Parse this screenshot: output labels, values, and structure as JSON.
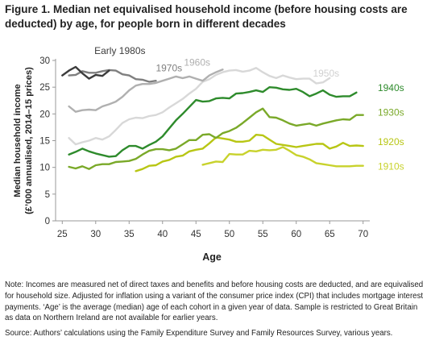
{
  "title": "Figure 1. Median net equivalised household income (before housing costs are deducted) by age, for people born in different decades",
  "notes": {
    "note": "Note: Incomes are measured net of direct taxes and benefits and before housing costs are deducted, and are equivalised for household size. Adjusted for inflation using a variant of the consumer price index (CPI) that includes mortgage interest payments. ‘Age’ is the average (median) age of each cohort in a given year of data. Sample is restricted to Great Britain as data on Northern Ireland are not available for earlier years.",
    "source": "Source: Authors’ calculations using the Family Expenditure Survey and Family Resources Survey, various years."
  },
  "chart_data": {
    "type": "line",
    "xlabel": "Age",
    "ylabel": "Median household income (£’000 annualised, 2014–15 prices)",
    "xlim": [
      24,
      71
    ],
    "ylim": [
      0,
      30
    ],
    "xticks": [
      25,
      30,
      35,
      40,
      45,
      50,
      55,
      60,
      65,
      70
    ],
    "yticks": [
      0,
      5,
      10,
      15,
      20,
      25,
      30
    ],
    "grid": false,
    "legend": "inline labels at line ends",
    "series": [
      {
        "name": "1910s",
        "color": "#c8d22c",
        "x": [
          46,
          47,
          48,
          49,
          50,
          51,
          52,
          53,
          54,
          55,
          56,
          57,
          58,
          59,
          60,
          61,
          62,
          63,
          64,
          65,
          66,
          67,
          68,
          69,
          70
        ],
        "y": [
          10.5,
          10.8,
          11.1,
          11.0,
          12.5,
          12.4,
          12.4,
          13.1,
          13.0,
          13.3,
          13.2,
          13.3,
          13.8,
          13.1,
          12.3,
          12.0,
          11.5,
          10.8,
          10.6,
          10.4,
          10.2,
          10.2,
          10.2,
          10.3,
          10.3
        ]
      },
      {
        "name": "1920s",
        "color": "#b8c614",
        "x": [
          36,
          37,
          38,
          39,
          40,
          41,
          42,
          43,
          44,
          45,
          46,
          47,
          48,
          49,
          50,
          51,
          52,
          53,
          54,
          55,
          56,
          57,
          58,
          59,
          60,
          61,
          62,
          63,
          64,
          65,
          66,
          67,
          68,
          69,
          70
        ],
        "y": [
          9.3,
          9.7,
          10.3,
          10.4,
          11.1,
          11.4,
          12.0,
          12.2,
          13.0,
          13.3,
          13.5,
          14.5,
          15.6,
          15.4,
          15.2,
          14.8,
          14.8,
          15.0,
          16.1,
          16.0,
          15.2,
          14.4,
          14.2,
          14.0,
          13.8,
          14.0,
          14.2,
          14.4,
          14.4,
          13.5,
          13.9,
          14.6,
          14.0,
          14.1,
          14.0
        ]
      },
      {
        "name": "1930s",
        "color": "#7aa929",
        "x": [
          26,
          27,
          28,
          29,
          30,
          31,
          32,
          33,
          34,
          35,
          36,
          37,
          38,
          39,
          40,
          41,
          42,
          43,
          44,
          45,
          46,
          47,
          48,
          49,
          50,
          51,
          52,
          53,
          54,
          55,
          56,
          57,
          58,
          59,
          60,
          61,
          62,
          63,
          64,
          65,
          66,
          67,
          68,
          69,
          70
        ],
        "y": [
          10.1,
          9.8,
          10.2,
          9.7,
          10.4,
          10.6,
          10.6,
          11.0,
          11.1,
          11.2,
          11.6,
          12.4,
          13.1,
          13.4,
          13.4,
          13.2,
          13.5,
          14.3,
          15.1,
          15.1,
          16.1,
          16.2,
          15.5,
          16.4,
          16.8,
          17.4,
          18.3,
          19.3,
          20.3,
          21.0,
          19.4,
          19.3,
          18.8,
          18.2,
          17.8,
          18.0,
          18.2,
          17.8,
          18.2,
          18.5,
          18.8,
          19.0,
          18.9,
          19.8,
          19.8
        ]
      },
      {
        "name": "1940s",
        "color": "#2e8b2c",
        "x": [
          26,
          27,
          28,
          29,
          30,
          31,
          32,
          33,
          34,
          35,
          36,
          37,
          38,
          39,
          40,
          41,
          42,
          43,
          44,
          45,
          46,
          47,
          48,
          49,
          50,
          51,
          52,
          53,
          54,
          55,
          56,
          57,
          58,
          59,
          60,
          61,
          62,
          63,
          64,
          65,
          66,
          67,
          68,
          69
        ],
        "y": [
          12.4,
          12.9,
          13.5,
          13.0,
          12.6,
          12.3,
          12.0,
          12.1,
          13.2,
          14.0,
          14.0,
          13.5,
          14.2,
          14.8,
          15.8,
          17.3,
          18.8,
          20.0,
          21.3,
          22.6,
          22.3,
          22.4,
          22.9,
          23.0,
          22.9,
          23.8,
          23.9,
          24.1,
          24.4,
          24.1,
          25.0,
          24.9,
          24.6,
          24.5,
          24.7,
          24.1,
          23.3,
          23.8,
          24.4,
          23.6,
          23.2,
          23.3,
          23.3,
          24.0
        ]
      },
      {
        "name": "1950s",
        "color": "#d8d8d8",
        "x": [
          26,
          27,
          28,
          29,
          30,
          31,
          32,
          33,
          34,
          35,
          36,
          37,
          38,
          39,
          40,
          41,
          42,
          43,
          44,
          45,
          46,
          47,
          48,
          49,
          50,
          51,
          52,
          53,
          54,
          55,
          56,
          57,
          58,
          59,
          60,
          61,
          62,
          63,
          64,
          65
        ],
        "y": [
          15.5,
          14.3,
          14.7,
          15.0,
          15.5,
          15.2,
          15.8,
          17.0,
          18.3,
          19.0,
          19.3,
          19.2,
          19.6,
          19.8,
          20.3,
          21.2,
          22.0,
          22.8,
          23.8,
          24.7,
          26.0,
          26.5,
          27.3,
          27.8,
          28.1,
          28.2,
          27.9,
          28.1,
          28.6,
          27.8,
          27.1,
          26.7,
          27.2,
          26.8,
          26.5,
          26.6,
          26.6,
          25.7,
          25.9,
          26.7
        ]
      },
      {
        "name": "1960s",
        "color": "#b0b0b0",
        "x": [
          26,
          27,
          28,
          29,
          30,
          31,
          32,
          33,
          34,
          35,
          36,
          37,
          38,
          39,
          40,
          41,
          42,
          43,
          44,
          45,
          46,
          47,
          48,
          49
        ],
        "y": [
          21.4,
          20.4,
          20.7,
          20.8,
          20.7,
          21.4,
          21.8,
          22.3,
          23.2,
          24.4,
          25.3,
          25.6,
          25.6,
          25.8,
          26.2,
          26.6,
          27.0,
          26.7,
          27.0,
          26.6,
          26.2,
          27.2,
          27.8,
          28.3
        ]
      },
      {
        "name": "1970s",
        "color": "#7f7f7f",
        "x": [
          26,
          27,
          28,
          29,
          30,
          31,
          32,
          33,
          34,
          35,
          36,
          37,
          38,
          39
        ],
        "y": [
          27.2,
          27.3,
          28.0,
          27.7,
          27.7,
          28.0,
          28.2,
          28.1,
          27.4,
          27.2,
          26.5,
          26.4,
          26.0,
          26.2
        ]
      },
      {
        "name": "Early 1980s",
        "color": "#3c3c3c",
        "x": [
          25,
          26,
          27,
          28,
          29,
          30,
          31,
          32
        ],
        "y": [
          27.2,
          28.1,
          28.8,
          27.6,
          26.6,
          27.3,
          27.1,
          28.1
        ]
      }
    ],
    "labels": [
      {
        "series": "Early 1980s",
        "text": "Early 1980s",
        "at": [
          29.8,
          31.8
        ],
        "color": "#3c3c3c"
      },
      {
        "series": "1970s",
        "text": "1970s",
        "at": [
          39.0,
          28.6
        ],
        "color": "#7f7f7f"
      },
      {
        "series": "1960s",
        "text": "1960s",
        "at": [
          43.2,
          29.6
        ],
        "color": "#b0b0b0"
      },
      {
        "series": "1950s",
        "text": "1950s",
        "at": [
          62.5,
          27.6
        ],
        "color": "#d0d0d0"
      },
      {
        "series": "1940s",
        "text": "1940s",
        "at": [
          72.2,
          24.9
        ],
        "color": "#2e8b2c"
      },
      {
        "series": "1930s",
        "text": "1930s",
        "at": [
          72.2,
          20.3
        ],
        "color": "#7aa929"
      },
      {
        "series": "1920s",
        "text": "1920s",
        "at": [
          72.2,
          14.8
        ],
        "color": "#b8c614"
      },
      {
        "series": "1910s",
        "text": "1910s",
        "at": [
          72.2,
          10.2
        ],
        "color": "#c8d22c"
      }
    ]
  }
}
